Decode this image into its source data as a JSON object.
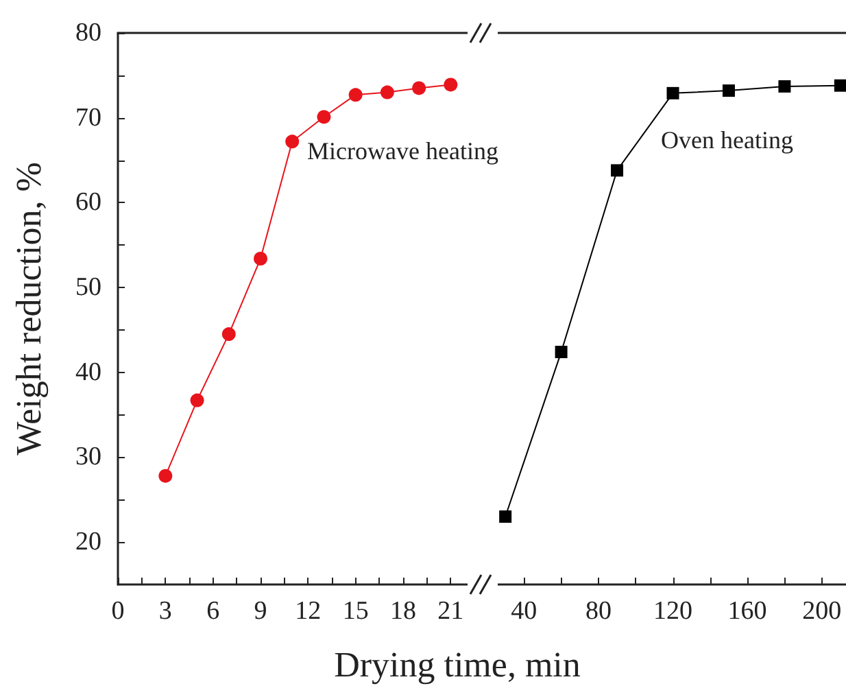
{
  "chart_data": [
    {
      "type": "line",
      "ylabel": "Weight reduction, %",
      "xlabel": "Drying time, min",
      "xlim": [
        0,
        22.5
      ],
      "ylim": [
        15,
        80
      ],
      "xticks": [
        0,
        {
          "value": 1.5,
          "label": null
        },
        3,
        {
          "value": 4.5,
          "label": null
        },
        6,
        {
          "value": 7.5,
          "label": null
        },
        9,
        {
          "value": 10.5,
          "label": null
        },
        12,
        {
          "value": 13.5,
          "label": null
        },
        15,
        {
          "value": 16.5,
          "label": null
        },
        18,
        {
          "value": 19.5,
          "label": null
        },
        21
      ],
      "yticks": [
        20,
        {
          "value": 25,
          "label": null
        },
        30,
        {
          "value": 35,
          "label": null
        },
        40,
        {
          "value": 45,
          "label": null
        },
        50,
        {
          "value": 55,
          "label": null
        },
        60,
        {
          "value": 65,
          "label": null
        },
        70,
        {
          "value": 75,
          "label": null
        },
        80
      ],
      "series": [
        {
          "color": "#e8141c",
          "marker": "circle",
          "x": [
            3,
            5,
            7,
            9,
            11,
            13,
            15,
            17,
            19,
            21
          ],
          "values": [
            27.8,
            36.7,
            44.5,
            53.4,
            67.2,
            70.1,
            72.7,
            73.0,
            73.5,
            73.9
          ]
        }
      ],
      "annotations": [
        "Microwave heating"
      ],
      "grid": false
    },
    {
      "type": "line",
      "xlim": [
        20,
        213
      ],
      "ylim": [
        15,
        80
      ],
      "tick_labels": "x",
      "xticks": [
        40,
        {
          "value": 60,
          "label": null
        },
        80,
        {
          "value": 100,
          "label": null
        },
        120,
        {
          "value": 140,
          "label": null
        },
        160,
        {
          "value": 180,
          "label": null
        },
        200
      ],
      "series": [
        {
          "color": "#000000",
          "marker": "square",
          "x": [
            30,
            60,
            90,
            120,
            150,
            180,
            210
          ],
          "values": [
            23.0,
            42.4,
            63.8,
            72.9,
            73.2,
            73.7,
            73.8
          ]
        }
      ],
      "annotations": [
        "Oven heating"
      ],
      "grid": false
    }
  ]
}
